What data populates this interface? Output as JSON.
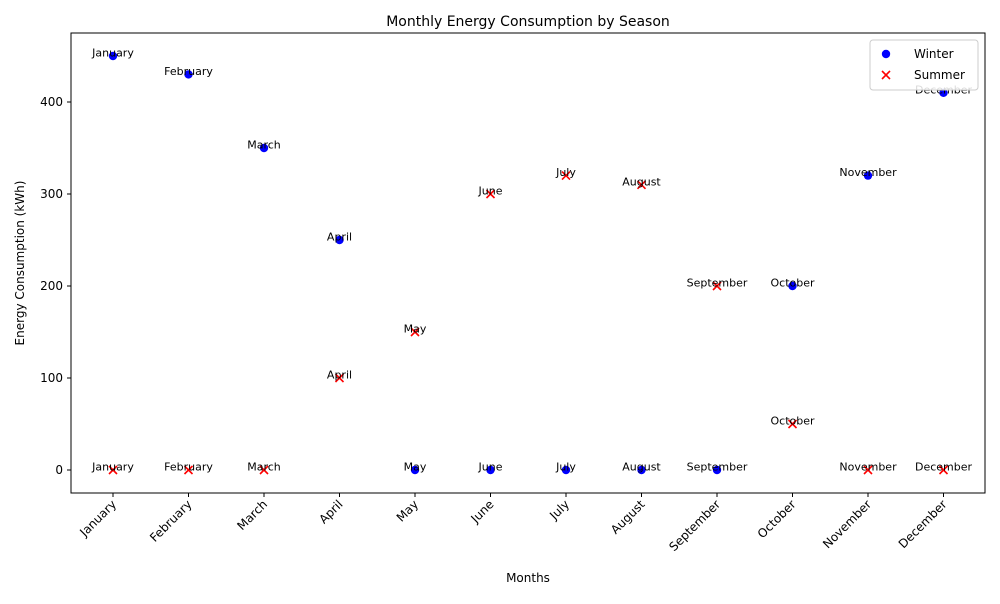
{
  "chart_data": {
    "type": "scatter",
    "title": "Monthly Energy Consumption by Season",
    "xlabel": "Months",
    "ylabel": "Energy Consumption (kWh)",
    "categories": [
      "January",
      "February",
      "March",
      "April",
      "May",
      "June",
      "July",
      "August",
      "September",
      "October",
      "November",
      "December"
    ],
    "ylim": [
      -25,
      475
    ],
    "yticks": [
      0,
      100,
      200,
      300,
      400
    ],
    "grid": false,
    "legend_position": "top-right",
    "series": [
      {
        "name": "Winter",
        "marker": "circle",
        "color": "#0000ff",
        "values": [
          450,
          430,
          350,
          250,
          0,
          0,
          0,
          0,
          0,
          200,
          320,
          410
        ]
      },
      {
        "name": "Summer",
        "marker": "x",
        "color": "#ff0000",
        "values": [
          0,
          0,
          0,
          100,
          150,
          300,
          320,
          310,
          200,
          50,
          0,
          0
        ]
      }
    ]
  }
}
